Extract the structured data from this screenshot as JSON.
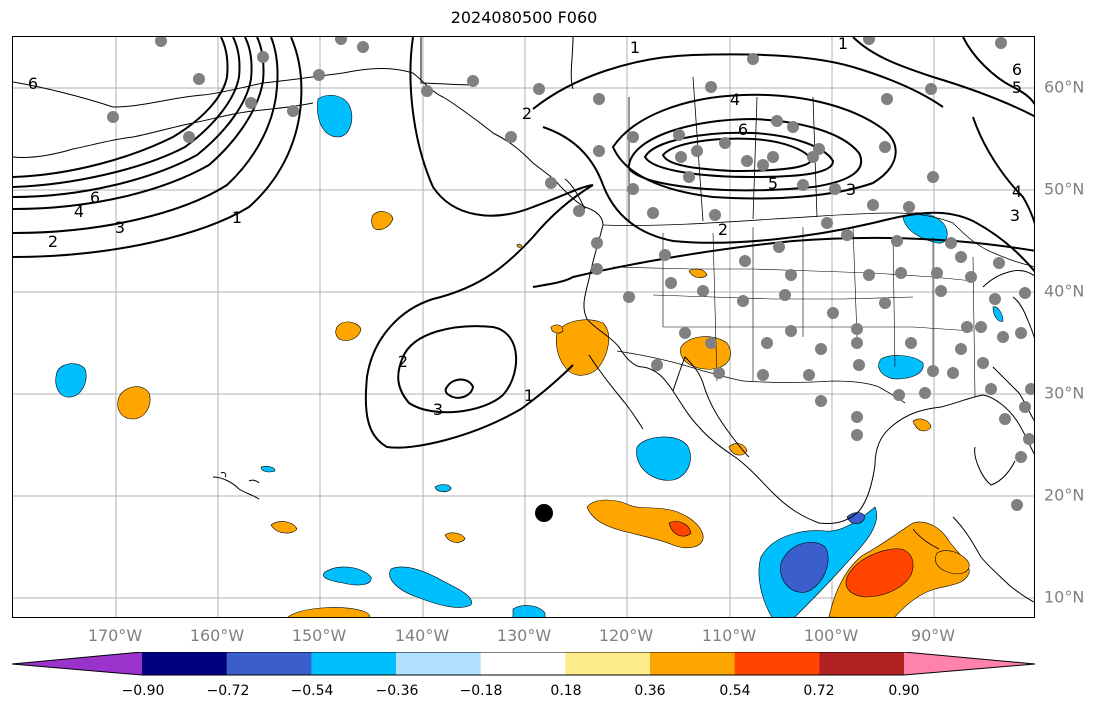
{
  "title": "2024080500 F060",
  "lon_labels": [
    "170°W",
    "160°W",
    "150°W",
    "140°W",
    "130°W",
    "120°W",
    "110°W",
    "100°W",
    "90°W"
  ],
  "lat_labels": [
    "60°N",
    "50°N",
    "40°N",
    "30°N",
    "20°N",
    "10°N"
  ],
  "colorbar": {
    "ticks": [
      "−0.90",
      "−0.72",
      "−0.54",
      "−0.36",
      "−0.18",
      "0.18",
      "0.36",
      "0.54",
      "0.72",
      "0.90"
    ],
    "colors": [
      "#9933cc",
      "#000080",
      "#3a5fcd",
      "#00bfff",
      "#b0e2ff",
      "#ffffff",
      "#ffec8b",
      "#ffa500",
      "#ff4500",
      "#b22222",
      "#ff82ab"
    ]
  },
  "colors": {
    "negative_light": "#b0e2ff",
    "negative_mid": "#00bfff",
    "negative_strong": "#3a5fcd",
    "positive_light": "#ffec8b",
    "positive_mid": "#ffa500",
    "positive_strong": "#ff4500",
    "station": "#808080",
    "marker": "#000000"
  },
  "contour_labels": [
    "1",
    "2",
    "3",
    "4",
    "5",
    "6"
  ],
  "map_elements": {
    "coastlines": true,
    "country_borders": true,
    "us_state_borders": true,
    "gridlines": true,
    "station_dots": true,
    "black_marker": true
  }
}
